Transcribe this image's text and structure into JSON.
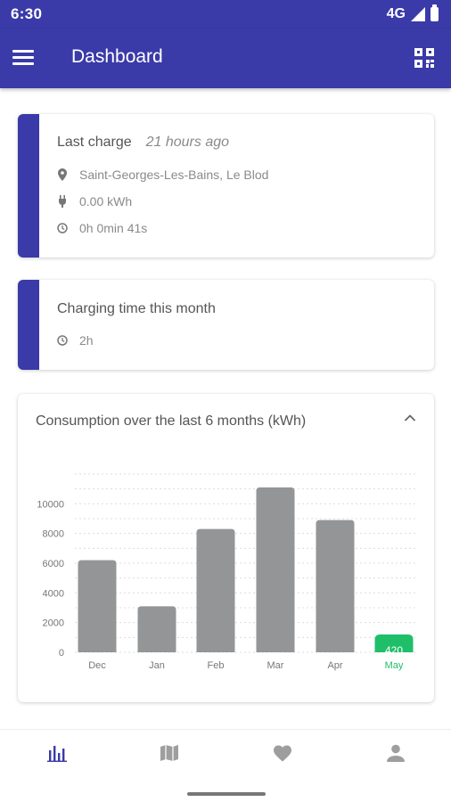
{
  "status_bar": {
    "time": "6:30",
    "network": "4G"
  },
  "app_bar": {
    "title": "Dashboard"
  },
  "last_charge": {
    "title": "Last charge",
    "relative_time": "21 hours ago",
    "location": "Saint-Georges-Les-Bains, Le Blod",
    "energy": "0.00 kWh",
    "duration": "0h 0min 41s"
  },
  "charging_time": {
    "title": "Charging time this month",
    "value": "2h"
  },
  "consumption": {
    "title": "Consumption over the last 6 months (kWh)"
  },
  "chart_data": {
    "type": "bar",
    "categories": [
      "Dec",
      "Jan",
      "Feb",
      "Mar",
      "Apr",
      "May"
    ],
    "values": [
      6200,
      3100,
      8300,
      11100,
      8900,
      420
    ],
    "title": "Consumption over the last 6 months (kWh)",
    "yticks": [
      "0",
      "2000",
      "4000",
      "6000",
      "8000",
      "10000"
    ],
    "ylim": [
      0,
      12000
    ],
    "grid": true,
    "bar_color": "#939597",
    "highlight_color": "#1fbf6a",
    "highlight_index": 5,
    "highlight_label": "420"
  },
  "colors": {
    "primary": "#3a3aa8",
    "accent_green": "#1fbf6a"
  },
  "nav": [
    {
      "icon": "bar-chart-icon",
      "active": true
    },
    {
      "icon": "map-icon",
      "active": false
    },
    {
      "icon": "heart-icon",
      "active": false
    },
    {
      "icon": "person-icon",
      "active": false
    }
  ]
}
